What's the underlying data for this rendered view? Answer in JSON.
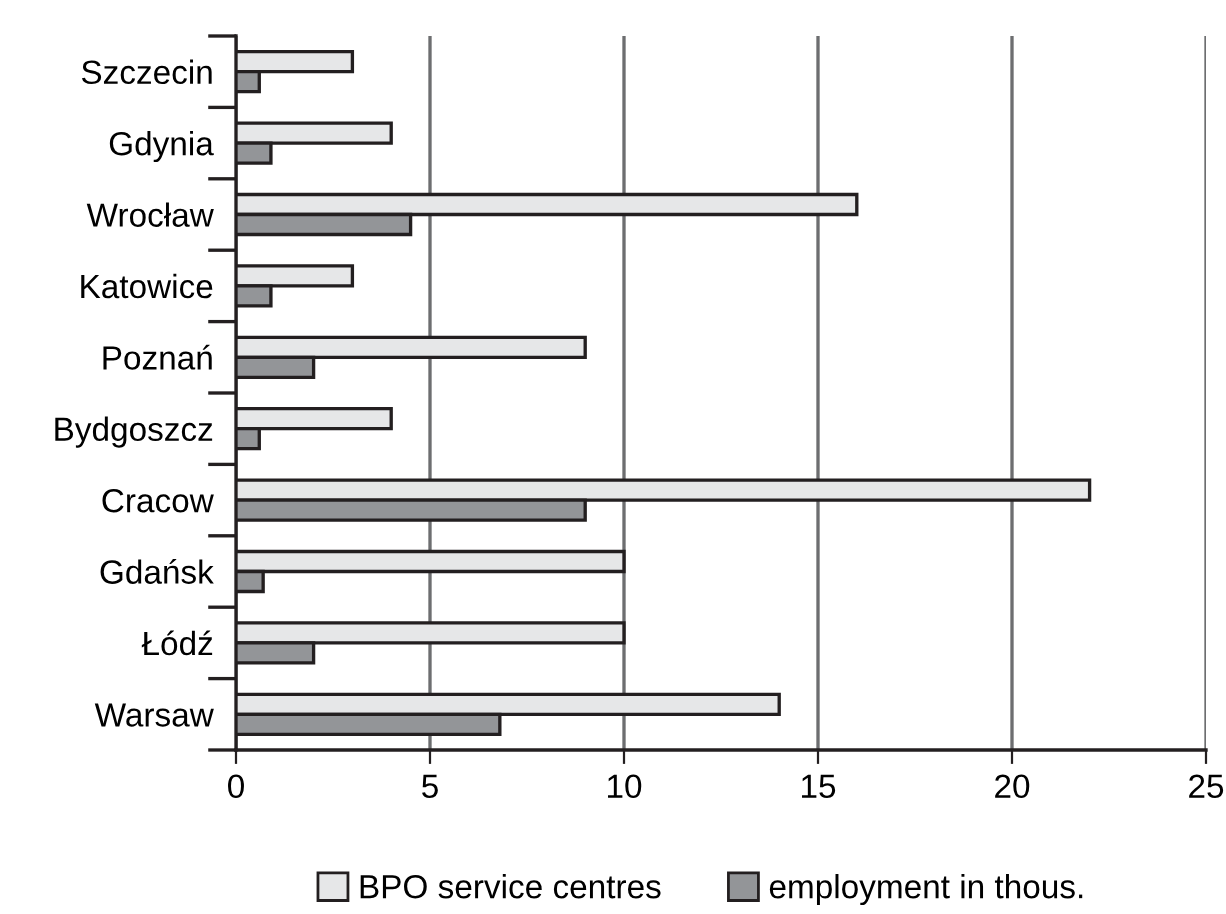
{
  "chart_data": {
    "type": "bar",
    "orientation": "horizontal",
    "categories": [
      "Szczecin",
      "Gdynia",
      "Wrocław",
      "Katowice",
      "Poznań",
      "Bydgoszcz",
      "Cracow",
      "Gdańsk",
      "Łódź",
      "Warsaw"
    ],
    "series": [
      {
        "name": "BPO service centres",
        "color": "#e6e7e8",
        "values": [
          3,
          4,
          16,
          3,
          9,
          4,
          22,
          10,
          10,
          14
        ]
      },
      {
        "name": "employment in thous.",
        "color": "#939598",
        "values": [
          0.6,
          0.9,
          4.5,
          0.9,
          2,
          0.6,
          9,
          0.7,
          2,
          6.8
        ]
      }
    ],
    "xlim": [
      0,
      25
    ],
    "xticks": [
      0,
      5,
      10,
      15,
      20,
      25
    ],
    "grid": "x",
    "legend": "bottom"
  }
}
